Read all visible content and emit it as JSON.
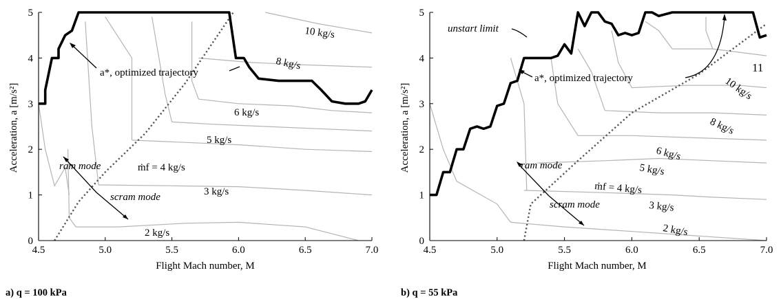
{
  "chart_data": [
    {
      "type": "line",
      "caption": "a) q = 100 kPa",
      "xlabel": "Flight Mach number, M",
      "ylabel": "Acceleration, a [m/s²]",
      "xlim": [
        4.5,
        7.0
      ],
      "ylim": [
        0,
        5
      ],
      "xticks": [
        "4.5",
        "5.0",
        "5.5",
        "6.0",
        "6.5",
        "7.0"
      ],
      "yticks": [
        "0",
        "1",
        "2",
        "3",
        "4",
        "5"
      ],
      "grid": false,
      "series": [
        {
          "name": "a*, optimized trajectory",
          "x": [
            4.5,
            4.55,
            4.55,
            4.6,
            4.65,
            4.65,
            4.7,
            4.75,
            4.8,
            5.0,
            5.5,
            5.93,
            5.98,
            6.04,
            6.08,
            6.15,
            6.3,
            6.45,
            6.55,
            6.62,
            6.7,
            6.8,
            6.9,
            6.95,
            7.0
          ],
          "y": [
            3.0,
            3.0,
            3.3,
            4.0,
            4.0,
            4.2,
            4.5,
            4.6,
            5.0,
            5.0,
            5.0,
            5.0,
            4.0,
            4.0,
            3.8,
            3.55,
            3.5,
            3.5,
            3.5,
            3.3,
            3.05,
            3.0,
            3.0,
            3.05,
            3.3
          ]
        },
        {
          "name": "unstart limit",
          "x": [
            4.62,
            4.8,
            5.0,
            5.3,
            5.6,
            5.96
          ],
          "y": [
            0.0,
            0.85,
            1.5,
            2.35,
            3.45,
            5.0
          ]
        }
      ],
      "contours": [
        {
          "label": "2 kg/s",
          "x": [
            5.1,
            5.6,
            6.0,
            6.5,
            6.9
          ],
          "y": [
            0.3,
            0.38,
            0.4,
            0.3,
            0.0
          ]
        },
        {
          "label": "3 kg/s",
          "x": [
            4.95,
            5.5,
            6.0,
            6.5,
            7.0
          ],
          "y": [
            1.22,
            1.2,
            1.18,
            1.1,
            1.0
          ]
        },
        {
          "label": "ṁf = 4 kg/s",
          "x": [
            5.2,
            5.6,
            6.0,
            6.5,
            7.0
          ],
          "y": [
            2.2,
            2.15,
            2.1,
            2.0,
            1.95
          ]
        },
        {
          "label": "5 kg/s",
          "x": [
            5.5,
            5.8,
            6.2,
            6.6,
            7.0
          ],
          "y": [
            2.6,
            2.55,
            2.5,
            2.45,
            2.4
          ]
        },
        {
          "label": "6 kg/s",
          "x": [
            5.7,
            6.0,
            6.4,
            6.7,
            7.0
          ],
          "y": [
            3.1,
            3.0,
            2.95,
            2.85,
            2.8
          ]
        },
        {
          "label": "8 kg/s",
          "x": [
            5.7,
            6.1,
            6.5,
            7.0
          ],
          "y": [
            4.0,
            3.9,
            3.85,
            3.8
          ]
        },
        {
          "label": "10 kg/s",
          "x": [
            6.2,
            6.6,
            7.0
          ],
          "y": [
            5.0,
            4.75,
            4.55
          ]
        }
      ],
      "annotations": [
        {
          "text": "10 kg/s"
        },
        {
          "text": "8 kg/s"
        },
        {
          "text": "6 kg/s"
        },
        {
          "text": "5 kg/s"
        },
        {
          "text": "3 kg/s"
        },
        {
          "text": "2 kg/s"
        },
        {
          "text": "ram mode"
        },
        {
          "text": "scram mode"
        }
      ]
    },
    {
      "type": "line",
      "caption": "b) q = 55 kPa",
      "xlabel": "Flight Mach number, M",
      "ylabel": "Acceleration, a [m/s²]",
      "xlim": [
        4.5,
        7.0
      ],
      "ylim": [
        0,
        5
      ],
      "xticks": [
        "4.5",
        "5.0",
        "5.5",
        "6.0",
        "6.5",
        "7.0"
      ],
      "yticks": [
        "0",
        "1",
        "2",
        "3",
        "4",
        "5"
      ],
      "grid": false,
      "series": [
        {
          "name": "a*, optimized trajectory",
          "x": [
            4.5,
            4.55,
            4.6,
            4.65,
            4.7,
            4.75,
            4.8,
            4.85,
            4.9,
            4.95,
            5.0,
            5.05,
            5.1,
            5.15,
            5.2,
            5.25,
            5.3,
            5.4,
            5.45,
            5.5,
            5.55,
            5.6,
            5.65,
            5.7,
            5.75,
            5.8,
            5.85,
            5.9,
            5.95,
            6.0,
            6.05,
            6.1,
            6.15,
            6.2,
            6.3,
            6.5,
            6.7,
            6.9,
            6.95,
            7.0
          ],
          "y": [
            1.0,
            1.0,
            1.5,
            1.5,
            2.0,
            2.0,
            2.45,
            2.5,
            2.45,
            2.5,
            2.95,
            3.0,
            3.45,
            3.5,
            4.0,
            4.0,
            4.0,
            4.0,
            4.05,
            4.3,
            4.1,
            5.0,
            4.7,
            5.0,
            5.0,
            4.8,
            4.75,
            4.5,
            4.55,
            4.5,
            4.55,
            5.0,
            5.0,
            4.92,
            5.0,
            5.0,
            5.0,
            5.0,
            4.45,
            4.5
          ]
        },
        {
          "name": "unstart limit",
          "x": [
            5.2,
            5.25,
            5.6,
            6.0,
            6.5,
            7.0
          ],
          "y": [
            0.0,
            0.8,
            1.75,
            2.8,
            3.65,
            4.75
          ]
        }
      ],
      "contours": [
        {
          "label": "2 kg/s",
          "x": [
            5.1,
            5.5,
            6.0,
            6.5,
            7.0
          ],
          "y": [
            0.4,
            0.3,
            0.2,
            0.1,
            0.0
          ]
        },
        {
          "label": "3 kg/s",
          "x": [
            5.2,
            5.8,
            6.3,
            6.6,
            7.0
          ],
          "y": [
            1.1,
            1.05,
            1.0,
            0.95,
            0.9
          ]
        },
        {
          "label": "ṁf = 4 kg/s",
          "x": [
            5.3,
            5.8,
            6.2,
            6.6,
            7.0
          ],
          "y": [
            1.7,
            1.75,
            1.8,
            1.75,
            1.7
          ]
        },
        {
          "label": "5 kg/s",
          "x": [
            5.6,
            6.0,
            6.5,
            7.0
          ],
          "y": [
            2.3,
            2.3,
            2.25,
            2.2
          ]
        },
        {
          "label": "6 kg/s",
          "x": [
            5.8,
            6.2,
            6.6,
            7.0
          ],
          "y": [
            2.85,
            2.8,
            2.8,
            2.75
          ]
        },
        {
          "label": "8 kg/s",
          "x": [
            6.0,
            6.4,
            6.8,
            7.0
          ],
          "y": [
            3.35,
            3.4,
            3.4,
            3.35
          ]
        },
        {
          "label": "10 kg/s",
          "x": [
            6.3,
            6.6,
            7.0
          ],
          "y": [
            4.2,
            4.2,
            4.05
          ]
        }
      ],
      "annotations": [
        {
          "text": "11"
        },
        {
          "text": "10 kg/s"
        },
        {
          "text": "8 kg/s"
        },
        {
          "text": "6 kg/s"
        },
        {
          "text": "5 kg/s"
        },
        {
          "text": "3 kg/s"
        },
        {
          "text": "2 kg/s"
        },
        {
          "text": "ram mode"
        },
        {
          "text": "scram mode"
        },
        {
          "text": "unstart limit"
        }
      ]
    }
  ]
}
